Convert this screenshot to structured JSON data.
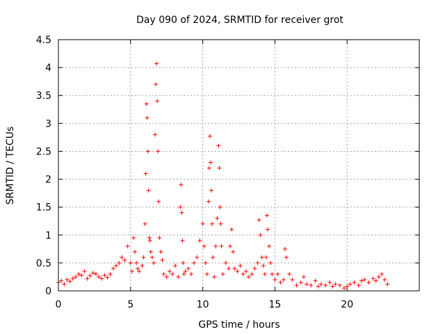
{
  "chart_data": {
    "type": "scatter",
    "title": "Day 090 of 2024, SRMTID for receiver grot",
    "xlabel": "GPS time / hours",
    "ylabel": "SRMTID / TECUs",
    "xlim": [
      0,
      25
    ],
    "ylim": [
      0,
      4.5
    ],
    "xticks": [
      0,
      5,
      10,
      15,
      20
    ],
    "xtick_labels": [
      "0",
      "5",
      "10",
      "15",
      "20"
    ],
    "yticks": [
      0,
      0.5,
      1,
      1.5,
      2,
      2.5,
      3,
      3.5,
      4,
      4.5
    ],
    "ytick_labels": [
      "0",
      "0.5",
      "1",
      "1.5",
      "2",
      "2.5",
      "3",
      "3.5",
      "4",
      "4.5"
    ],
    "grid": true,
    "marker": "+",
    "color": "#ff0000",
    "series": [
      {
        "name": "SRMTID",
        "x": [
          0.0,
          0.2,
          0.4,
          0.6,
          0.8,
          1.0,
          1.2,
          1.4,
          1.6,
          1.8,
          2.0,
          2.2,
          2.4,
          2.6,
          2.8,
          3.0,
          3.2,
          3.4,
          3.6,
          3.8,
          4.0,
          4.2,
          4.4,
          4.6,
          4.8,
          5.0,
          5.1,
          5.2,
          5.3,
          5.4,
          5.5,
          5.6,
          5.8,
          5.9,
          6.0,
          6.05,
          6.1,
          6.15,
          6.2,
          6.25,
          6.3,
          6.35,
          6.4,
          6.5,
          6.6,
          6.7,
          6.75,
          6.8,
          6.85,
          6.9,
          6.95,
          7.0,
          7.1,
          7.2,
          7.3,
          7.5,
          7.7,
          7.9,
          8.1,
          8.3,
          8.45,
          8.5,
          8.55,
          8.6,
          8.65,
          8.7,
          8.8,
          9.0,
          9.2,
          9.4,
          9.6,
          9.8,
          10.0,
          10.1,
          10.2,
          10.3,
          10.4,
          10.45,
          10.5,
          10.55,
          10.6,
          10.65,
          10.7,
          10.8,
          10.9,
          11.0,
          11.1,
          11.15,
          11.2,
          11.25,
          11.3,
          11.4,
          11.6,
          11.8,
          11.9,
          12.0,
          12.1,
          12.2,
          12.4,
          12.6,
          12.8,
          13.0,
          13.2,
          13.4,
          13.6,
          13.8,
          13.9,
          14.0,
          14.1,
          14.2,
          14.3,
          14.4,
          14.45,
          14.5,
          14.6,
          14.7,
          14.8,
          15.0,
          15.2,
          15.4,
          15.6,
          15.7,
          15.8,
          16.0,
          16.2,
          16.5,
          16.8,
          17.0,
          17.2,
          17.5,
          17.8,
          18.0,
          18.2,
          18.5,
          18.8,
          19.0,
          19.2,
          19.5,
          19.8,
          20.0,
          20.2,
          20.5,
          20.8,
          21.0,
          21.2,
          21.5,
          21.8,
          22.0,
          22.2,
          22.4,
          22.6,
          22.8
        ],
        "y": [
          0.15,
          0.18,
          0.12,
          0.2,
          0.17,
          0.22,
          0.25,
          0.3,
          0.28,
          0.35,
          0.22,
          0.27,
          0.32,
          0.3,
          0.25,
          0.22,
          0.28,
          0.24,
          0.3,
          0.4,
          0.45,
          0.5,
          0.6,
          0.55,
          0.8,
          0.5,
          0.35,
          0.95,
          0.7,
          0.5,
          0.4,
          0.35,
          0.45,
          0.6,
          1.2,
          2.1,
          3.35,
          3.1,
          2.5,
          1.8,
          0.95,
          0.9,
          0.7,
          0.6,
          0.5,
          2.8,
          3.7,
          4.07,
          3.4,
          2.5,
          1.6,
          0.95,
          0.7,
          0.55,
          0.3,
          0.25,
          0.35,
          0.3,
          0.45,
          0.25,
          1.5,
          1.9,
          1.4,
          0.9,
          0.5,
          0.3,
          0.35,
          0.4,
          0.3,
          0.5,
          0.6,
          0.9,
          1.2,
          0.8,
          0.5,
          0.3,
          1.6,
          2.2,
          2.77,
          2.3,
          1.8,
          1.2,
          0.6,
          0.25,
          0.8,
          1.3,
          2.6,
          2.2,
          1.5,
          1.2,
          0.8,
          0.3,
          0.5,
          0.4,
          0.8,
          1.1,
          0.7,
          0.4,
          0.35,
          0.45,
          0.3,
          0.35,
          0.25,
          0.3,
          0.4,
          0.5,
          1.27,
          1.0,
          0.6,
          0.45,
          0.3,
          0.6,
          1.35,
          1.1,
          0.8,
          0.5,
          0.3,
          0.2,
          0.3,
          0.15,
          0.2,
          0.75,
          0.6,
          0.3,
          0.2,
          0.1,
          0.15,
          0.25,
          0.12,
          0.1,
          0.18,
          0.08,
          0.12,
          0.1,
          0.15,
          0.08,
          0.12,
          0.1,
          0.05,
          0.08,
          0.12,
          0.15,
          0.1,
          0.18,
          0.2,
          0.15,
          0.22,
          0.18,
          0.25,
          0.3,
          0.2,
          0.12
        ]
      }
    ]
  }
}
